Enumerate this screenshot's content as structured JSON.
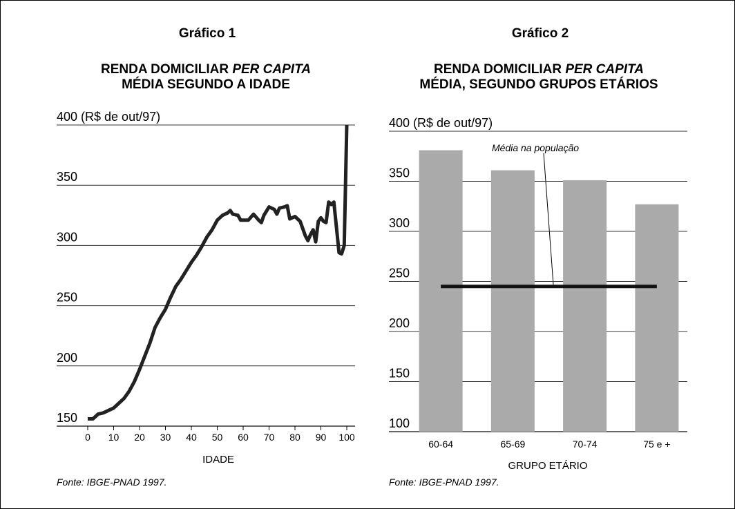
{
  "chart_data": [
    {
      "type": "line",
      "label": "Gráfico 1",
      "title": {
        "line1": "RENDA DOMICILIAR ",
        "italic": "PER CAPITA",
        "line2": "MÉDIA SEGUNDO A IDADE"
      },
      "x_label": "IDADE",
      "source": "Fonte: IBGE-PNAD 1997.",
      "x": [
        0,
        2,
        4,
        6,
        8,
        10,
        12,
        14,
        16,
        18,
        20,
        22,
        24,
        26,
        28,
        30,
        32,
        34,
        36,
        38,
        40,
        42,
        44,
        46,
        48,
        50,
        52,
        54,
        55,
        56,
        58,
        59,
        62,
        64,
        66,
        67,
        68,
        70,
        72,
        73,
        74,
        76,
        77,
        78,
        80,
        82,
        84,
        85,
        86,
        87,
        88,
        89,
        90,
        91,
        92,
        93,
        94,
        95,
        97,
        98,
        99,
        100
      ],
      "values": [
        156,
        156,
        160,
        161,
        163,
        165,
        169,
        173,
        179,
        187,
        197,
        208,
        219,
        232,
        240,
        247,
        257,
        266,
        272,
        279,
        286,
        292,
        299,
        307,
        313,
        321,
        325,
        327,
        329,
        326,
        325,
        321,
        321,
        326,
        321,
        319,
        325,
        332,
        330,
        326,
        331,
        332,
        333,
        322,
        324,
        320,
        308,
        304,
        309,
        313,
        303,
        320,
        323,
        320,
        319,
        336,
        334,
        336,
        294,
        293,
        300,
        400
      ],
      "color": "#222222",
      "xlim": [
        0,
        100
      ],
      "xticks": [
        0,
        10,
        20,
        30,
        40,
        50,
        60,
        70,
        80,
        90,
        100
      ],
      "ylim": [
        150,
        400
      ],
      "yticks": [
        150,
        200,
        250,
        300,
        350,
        {
          "value": 400,
          "label": "400 (R$ de out/97)"
        }
      ],
      "grid": true
    },
    {
      "type": "bar",
      "label": "Gráfico 2",
      "title": {
        "line1": "RENDA DOMICILIAR ",
        "italic": "PER CAPITA",
        "line2": "MÉDIA, SEGUNDO GRUPOS ETÁRIOS"
      },
      "x_label": "GRUPO ETÁRIO",
      "source": "Fonte: IBGE-PNAD 1997.",
      "categories": [
        "60-64",
        "65-69",
        "70-74",
        "75 e +"
      ],
      "values": [
        381,
        361,
        351,
        327
      ],
      "color": "#aaaaaa",
      "reference_line": {
        "value": 245,
        "label": "Média na população",
        "color": "#111111"
      },
      "ylim": [
        100,
        400
      ],
      "yticks": [
        100,
        150,
        200,
        250,
        300,
        350,
        {
          "value": 400,
          "label": "400 (R$ de out/97)"
        }
      ],
      "grid": true
    }
  ]
}
